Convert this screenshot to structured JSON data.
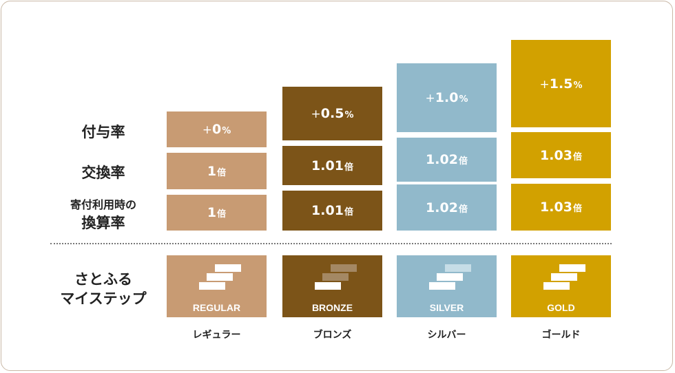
{
  "labels": {
    "grant_rate": "付与率",
    "exchange_rate": "交換率",
    "donation_line1": "寄付利用時の",
    "donation_line2": "換算率",
    "step_line1": "さとふる",
    "step_line2": "マイステップ"
  },
  "tiers": [
    {
      "id": "regular",
      "color": "#c89b73",
      "step_colors": [
        "#ffffff",
        "#ffffff",
        "#ffffff"
      ],
      "grant_plus": "+",
      "grant_value": "0",
      "grant_unit": "%",
      "exchange_value": "1",
      "exchange_unit": "倍",
      "donation_value": "1",
      "donation_unit": "倍",
      "badge_label": "REGULAR",
      "jp_name": "レギュラー"
    },
    {
      "id": "bronze",
      "color": "#7c5418",
      "step_colors": [
        "#a48864",
        "#a48864",
        "#ffffff"
      ],
      "grant_plus": "+",
      "grant_value": "0.5",
      "grant_unit": "%",
      "exchange_value": "1.01",
      "exchange_unit": "倍",
      "donation_value": "1.01",
      "donation_unit": "倍",
      "badge_label": "BRONZE",
      "jp_name": "ブロンズ"
    },
    {
      "id": "silver",
      "color": "#91b9cb",
      "step_colors": [
        "#c6dde7",
        "#ffffff",
        "#ffffff"
      ],
      "grant_plus": "+",
      "grant_value": "1.0",
      "grant_unit": "%",
      "exchange_value": "1.02",
      "exchange_unit": "倍",
      "donation_value": "1.02",
      "donation_unit": "倍",
      "badge_label": "SILVER",
      "jp_name": "シルバー"
    },
    {
      "id": "gold",
      "color": "#d2a100",
      "step_colors": [
        "#ffffff",
        "#ffffff",
        "#ffffff"
      ],
      "grant_plus": "+",
      "grant_value": "1.5",
      "grant_unit": "%",
      "exchange_value": "1.03",
      "exchange_unit": "倍",
      "donation_value": "1.03",
      "donation_unit": "倍",
      "badge_label": "GOLD",
      "jp_name": "ゴールド"
    }
  ]
}
